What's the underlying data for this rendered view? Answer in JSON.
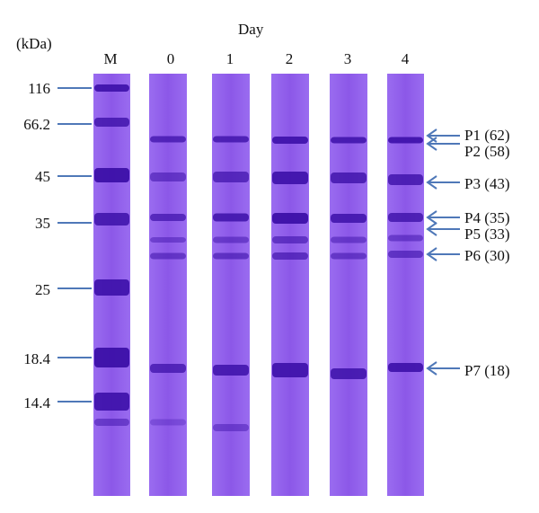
{
  "unit_label": "(kDa)",
  "day_label": "Day",
  "lanes": [
    {
      "label": "M"
    },
    {
      "label": "0"
    },
    {
      "label": "1"
    },
    {
      "label": "2"
    },
    {
      "label": "3"
    },
    {
      "label": "4"
    }
  ],
  "markers": [
    {
      "label": "116"
    },
    {
      "label": "66.2"
    },
    {
      "label": "45"
    },
    {
      "label": "35"
    },
    {
      "label": "25"
    },
    {
      "label": "18.4"
    },
    {
      "label": "14.4"
    }
  ],
  "bands": [
    {
      "label": "P1 (62)"
    },
    {
      "label": "P2 (58)"
    },
    {
      "label": "P3 (43)"
    },
    {
      "label": "P4 (35)"
    },
    {
      "label": "P5 (33)"
    },
    {
      "label": "P6 (30)"
    },
    {
      "label": "P7 (18)"
    }
  ],
  "colors": {
    "gel": "#8e5cea",
    "band_dark": "#3c10a8",
    "arrow": "#4f78b8",
    "marker_line": "#4f78b8"
  }
}
